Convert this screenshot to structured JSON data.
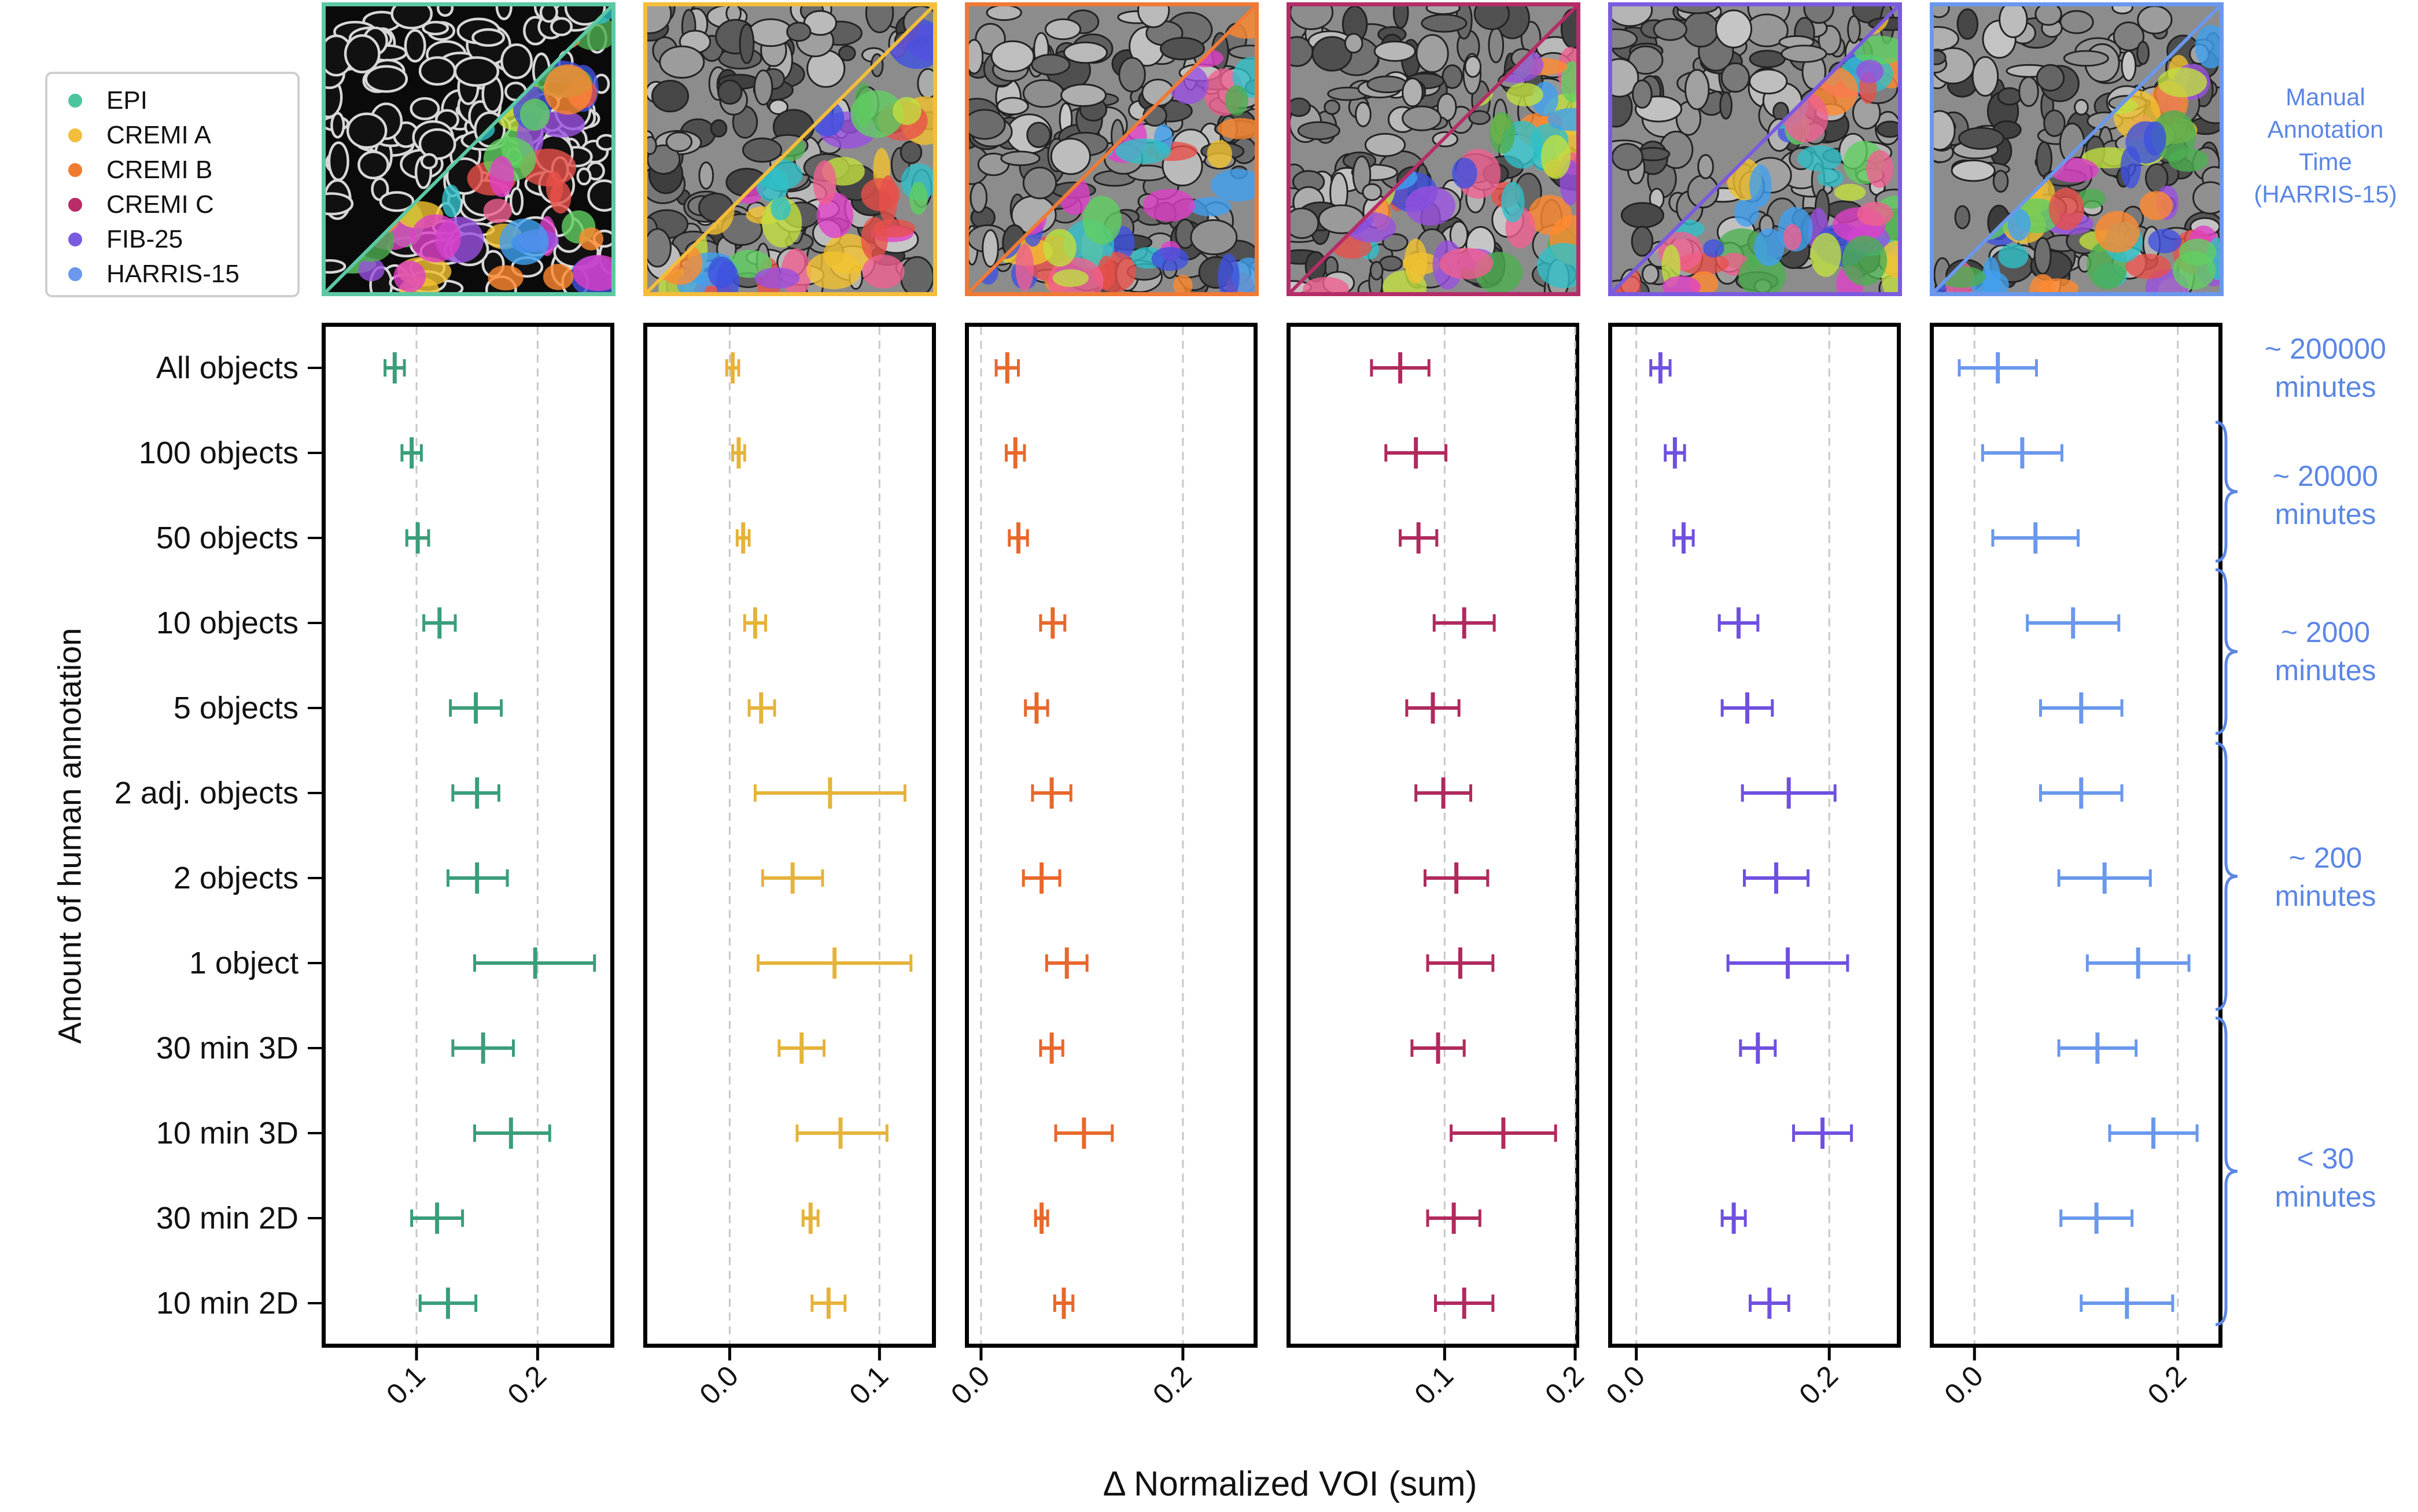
{
  "legend": {
    "items": [
      {
        "label": "EPI",
        "color": "#4cc4a0"
      },
      {
        "label": "CREMI A",
        "color": "#f2be3c"
      },
      {
        "label": "CREMI B",
        "color": "#f07a30"
      },
      {
        "label": "CREMI C",
        "color": "#b82c68"
      },
      {
        "label": "FIB-25",
        "color": "#7a5be0"
      },
      {
        "label": "HARRIS-15",
        "color": "#6a98ec"
      }
    ]
  },
  "right_annotation": {
    "title_lines": [
      "Manual",
      "Annotation",
      "Time",
      "(HARRIS-15)"
    ],
    "times": [
      {
        "lines": [
          "~ 200000",
          "minutes"
        ]
      },
      {
        "lines": [
          "~ 20000",
          "minutes"
        ]
      },
      {
        "lines": [
          "~ 2000",
          "minutes"
        ]
      },
      {
        "lines": [
          "~ 200",
          "minutes"
        ]
      },
      {
        "lines": [
          "< 30",
          "minutes"
        ]
      }
    ],
    "color": "#5b86e5"
  },
  "chart_data": {
    "type": "scatter",
    "ylabel": "Amount of human annotation",
    "xlabel": "Δ Normalized VOI (sum)",
    "categories": [
      "All objects",
      "100 objects",
      "50 objects",
      "10 objects",
      "5 objects",
      "2 adj. objects",
      "2 objects",
      "1 object",
      "30 min 3D",
      "10 min 3D",
      "30 min 2D",
      "10 min 2D"
    ],
    "grid": "vertical dashed",
    "panels": [
      {
        "dataset": "EPI",
        "color": "#3a9e7a",
        "xlim": [
          0.025,
          0.26
        ],
        "xticks": [
          0.1,
          0.2
        ],
        "xticklabels": [
          "0.1",
          "0.2"
        ],
        "mean": [
          0.082,
          0.096,
          0.101,
          0.119,
          0.149,
          0.15,
          0.15,
          0.198,
          0.155,
          0.178,
          0.117,
          0.126
        ],
        "low": [
          0.074,
          0.088,
          0.092,
          0.106,
          0.128,
          0.13,
          0.126,
          0.148,
          0.13,
          0.148,
          0.096,
          0.103
        ],
        "high": [
          0.09,
          0.104,
          0.11,
          0.132,
          0.17,
          0.168,
          0.175,
          0.247,
          0.18,
          0.21,
          0.138,
          0.149
        ]
      },
      {
        "dataset": "CREMI A",
        "color": "#e6b33a",
        "xlim": [
          -0.055,
          0.135
        ],
        "xticks": [
          0.0,
          0.1
        ],
        "xticklabels": [
          "0.0",
          "0.1"
        ],
        "mean": [
          0.002,
          0.006,
          0.009,
          0.017,
          0.021,
          0.067,
          0.042,
          0.07,
          0.048,
          0.074,
          0.054,
          0.066
        ],
        "low": [
          -0.002,
          0.002,
          0.005,
          0.01,
          0.013,
          0.017,
          0.022,
          0.019,
          0.033,
          0.045,
          0.049,
          0.055
        ],
        "high": [
          0.006,
          0.01,
          0.013,
          0.024,
          0.03,
          0.117,
          0.062,
          0.121,
          0.063,
          0.105,
          0.059,
          0.077
        ]
      },
      {
        "dataset": "CREMI B",
        "color": "#e8682c",
        "xlim": [
          -0.012,
          0.27
        ],
        "xticks": [
          0.0,
          0.2
        ],
        "xticklabels": [
          "0.0",
          "0.2"
        ],
        "mean": [
          0.026,
          0.034,
          0.037,
          0.071,
          0.055,
          0.07,
          0.06,
          0.085,
          0.07,
          0.102,
          0.06,
          0.082
        ],
        "low": [
          0.015,
          0.025,
          0.028,
          0.059,
          0.044,
          0.051,
          0.042,
          0.065,
          0.059,
          0.074,
          0.054,
          0.073
        ],
        "high": [
          0.037,
          0.043,
          0.046,
          0.083,
          0.066,
          0.089,
          0.078,
          0.105,
          0.081,
          0.13,
          0.066,
          0.091
        ]
      },
      {
        "dataset": "CREMI C",
        "color": "#b02a5e",
        "xlim": [
          -0.018,
          0.2
        ],
        "xticks": [
          0.1,
          0.2
        ],
        "xticklabels": [
          "0.1",
          "0.2"
        ],
        "mean": [
          0.066,
          0.078,
          0.08,
          0.115,
          0.091,
          0.099,
          0.109,
          0.112,
          0.095,
          0.145,
          0.107,
          0.115
        ],
        "low": [
          0.044,
          0.055,
          0.066,
          0.092,
          0.071,
          0.078,
          0.085,
          0.087,
          0.075,
          0.105,
          0.087,
          0.093
        ],
        "high": [
          0.088,
          0.101,
          0.094,
          0.138,
          0.111,
          0.12,
          0.133,
          0.137,
          0.115,
          0.185,
          0.127,
          0.137
        ]
      },
      {
        "dataset": "FIB-25",
        "color": "#7050e0",
        "xlim": [
          -0.025,
          0.27
        ],
        "xticks": [
          0.0,
          0.2
        ],
        "xticklabels": [
          "0.0",
          "0.2"
        ],
        "mean": [
          0.025,
          0.04,
          0.049,
          0.106,
          0.115,
          0.158,
          0.145,
          0.157,
          0.126,
          0.193,
          0.101,
          0.138
        ],
        "low": [
          0.015,
          0.03,
          0.039,
          0.086,
          0.089,
          0.11,
          0.112,
          0.095,
          0.108,
          0.163,
          0.089,
          0.118
        ],
        "high": [
          0.035,
          0.05,
          0.059,
          0.126,
          0.141,
          0.206,
          0.178,
          0.219,
          0.144,
          0.223,
          0.113,
          0.158
        ]
      },
      {
        "dataset": "HARRIS-15",
        "color": "#6a98ec",
        "xlim": [
          -0.04,
          0.24
        ],
        "xticks": [
          0.0,
          0.2
        ],
        "xticklabels": [
          "0.0",
          "0.2"
        ],
        "mean": [
          0.023,
          0.047,
          0.06,
          0.097,
          0.105,
          0.105,
          0.128,
          0.161,
          0.121,
          0.176,
          0.12,
          0.15
        ],
        "low": [
          -0.015,
          0.008,
          0.018,
          0.052,
          0.065,
          0.065,
          0.083,
          0.111,
          0.083,
          0.133,
          0.085,
          0.105
        ],
        "high": [
          0.061,
          0.086,
          0.102,
          0.142,
          0.145,
          0.145,
          0.173,
          0.211,
          0.159,
          0.219,
          0.155,
          0.195
        ]
      }
    ]
  }
}
